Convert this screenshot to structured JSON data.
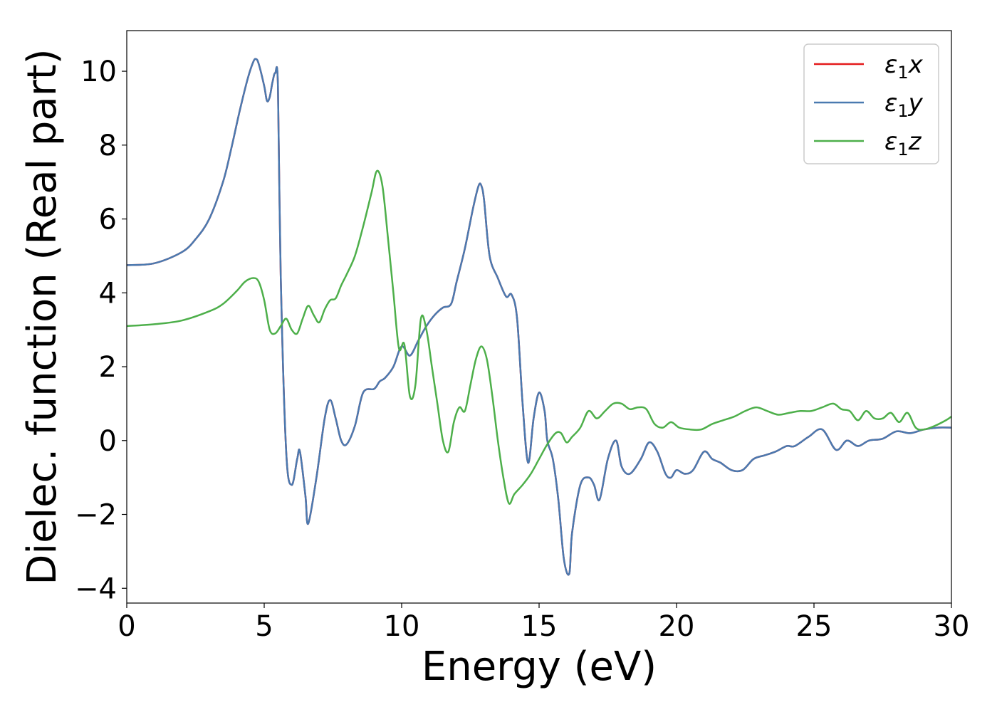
{
  "chart_data": {
    "type": "line",
    "xlabel": "Energy (eV)",
    "ylabel": "Dielec. function (Real part)",
    "xlim": [
      0,
      30
    ],
    "ylim": [
      -4.4,
      11.1
    ],
    "xticks": [
      0,
      5,
      10,
      15,
      20,
      25,
      30
    ],
    "yticks": [
      -4,
      -2,
      0,
      2,
      4,
      6,
      8,
      10
    ],
    "grid": false,
    "legend_position": "top-right",
    "series": [
      {
        "name": "ε1x",
        "color": "#e41a1c",
        "x": [
          0,
          1,
          2,
          2.5,
          3,
          3.5,
          3.8,
          4.1,
          4.4,
          4.6,
          4.7,
          4.8,
          5.0,
          5.1,
          5.2,
          5.3,
          5.4,
          5.5,
          5.6,
          5.8,
          6.0,
          6.2,
          6.3,
          6.5,
          6.6,
          6.9,
          7.2,
          7.4,
          7.6,
          7.8,
          8.0,
          8.3,
          8.6,
          9.0,
          9.2,
          9.4,
          9.7,
          10.0,
          10.3,
          10.6,
          10.9,
          11.2,
          11.5,
          11.8,
          12.0,
          12.3,
          12.6,
          12.8,
          12.9,
          13.0,
          13.2,
          13.5,
          13.8,
          14.0,
          14.2,
          14.4,
          14.6,
          14.8,
          15.0,
          15.2,
          15.3,
          15.5,
          15.7,
          15.9,
          16.1,
          16.2,
          16.5,
          16.8,
          17.0,
          17.2,
          17.5,
          17.8,
          18.0,
          18.3,
          18.7,
          19.0,
          19.3,
          19.6,
          19.8,
          20.0,
          20.3,
          20.6,
          21.0,
          21.3,
          21.6,
          22.0,
          22.4,
          22.8,
          23.2,
          23.6,
          24.0,
          24.3,
          24.8,
          25.3,
          25.8,
          26.2,
          26.6,
          27.0,
          27.5,
          28.0,
          28.5,
          29.0,
          29.5,
          30
        ],
        "y": [
          4.75,
          4.8,
          5.1,
          5.45,
          6.0,
          7.0,
          7.9,
          8.9,
          9.8,
          10.25,
          10.33,
          10.2,
          9.6,
          9.2,
          9.3,
          9.7,
          9.95,
          9.6,
          4.5,
          -0.3,
          -1.2,
          -0.5,
          -0.3,
          -1.5,
          -2.25,
          -1.0,
          0.6,
          1.1,
          0.6,
          0.0,
          -0.1,
          0.4,
          1.3,
          1.4,
          1.6,
          1.7,
          2.0,
          2.55,
          2.3,
          2.7,
          3.1,
          3.4,
          3.6,
          3.7,
          4.3,
          5.2,
          6.3,
          6.9,
          6.9,
          6.5,
          5.0,
          4.4,
          3.9,
          3.95,
          3.3,
          1.0,
          -0.6,
          0.6,
          1.3,
          0.8,
          0.0,
          -0.5,
          -1.6,
          -3.2,
          -3.6,
          -2.5,
          -1.2,
          -1.0,
          -1.2,
          -1.6,
          -0.5,
          0.0,
          -0.7,
          -0.9,
          -0.5,
          -0.05,
          -0.3,
          -0.9,
          -1.0,
          -0.8,
          -0.9,
          -0.8,
          -0.3,
          -0.5,
          -0.6,
          -0.8,
          -0.8,
          -0.5,
          -0.4,
          -0.3,
          -0.15,
          -0.15,
          0.1,
          0.3,
          -0.25,
          0.0,
          -0.15,
          0.0,
          0.05,
          0.25,
          0.2,
          0.3,
          0.35,
          0.35
        ]
      },
      {
        "name": "ε1y",
        "color": "#4a7ab0",
        "x": [
          0,
          1,
          2,
          2.5,
          3,
          3.5,
          3.8,
          4.1,
          4.4,
          4.6,
          4.7,
          4.8,
          5.0,
          5.1,
          5.2,
          5.3,
          5.4,
          5.5,
          5.6,
          5.8,
          6.0,
          6.2,
          6.3,
          6.5,
          6.6,
          6.9,
          7.2,
          7.4,
          7.6,
          7.8,
          8.0,
          8.3,
          8.6,
          9.0,
          9.2,
          9.4,
          9.7,
          10.0,
          10.3,
          10.6,
          10.9,
          11.2,
          11.5,
          11.8,
          12.0,
          12.3,
          12.6,
          12.8,
          12.9,
          13.0,
          13.2,
          13.5,
          13.8,
          14.0,
          14.2,
          14.4,
          14.6,
          14.8,
          15.0,
          15.2,
          15.3,
          15.5,
          15.7,
          15.9,
          16.1,
          16.2,
          16.5,
          16.8,
          17.0,
          17.2,
          17.5,
          17.8,
          18.0,
          18.3,
          18.7,
          19.0,
          19.3,
          19.6,
          19.8,
          20.0,
          20.3,
          20.6,
          21.0,
          21.3,
          21.6,
          22.0,
          22.4,
          22.8,
          23.2,
          23.6,
          24.0,
          24.3,
          24.8,
          25.3,
          25.8,
          26.2,
          26.6,
          27.0,
          27.5,
          28.0,
          28.5,
          29.0,
          29.5,
          30
        ],
        "y": [
          4.75,
          4.8,
          5.1,
          5.45,
          6.0,
          7.0,
          7.9,
          8.9,
          9.8,
          10.25,
          10.33,
          10.2,
          9.6,
          9.2,
          9.3,
          9.7,
          9.95,
          9.6,
          4.5,
          -0.3,
          -1.2,
          -0.5,
          -0.3,
          -1.5,
          -2.25,
          -1.0,
          0.6,
          1.1,
          0.6,
          0.0,
          -0.1,
          0.4,
          1.3,
          1.4,
          1.6,
          1.7,
          2.0,
          2.55,
          2.3,
          2.7,
          3.1,
          3.4,
          3.6,
          3.7,
          4.3,
          5.2,
          6.3,
          6.9,
          6.9,
          6.5,
          5.0,
          4.4,
          3.9,
          3.95,
          3.3,
          1.0,
          -0.6,
          0.6,
          1.3,
          0.8,
          0.0,
          -0.5,
          -1.6,
          -3.2,
          -3.6,
          -2.5,
          -1.2,
          -1.0,
          -1.2,
          -1.6,
          -0.5,
          0.0,
          -0.7,
          -0.9,
          -0.5,
          -0.05,
          -0.3,
          -0.9,
          -1.0,
          -0.8,
          -0.9,
          -0.8,
          -0.3,
          -0.5,
          -0.6,
          -0.8,
          -0.8,
          -0.5,
          -0.4,
          -0.3,
          -0.15,
          -0.15,
          0.1,
          0.3,
          -0.25,
          0.0,
          -0.15,
          0.0,
          0.05,
          0.25,
          0.2,
          0.3,
          0.35,
          0.35
        ]
      },
      {
        "name": "ε1z",
        "color": "#4daf4a",
        "x": [
          0,
          1,
          2,
          3,
          3.5,
          4.0,
          4.3,
          4.6,
          4.8,
          5.0,
          5.2,
          5.4,
          5.6,
          5.8,
          6.0,
          6.2,
          6.4,
          6.6,
          6.8,
          7.0,
          7.2,
          7.4,
          7.6,
          7.8,
          8.0,
          8.3,
          8.6,
          8.9,
          9.1,
          9.3,
          9.5,
          9.7,
          9.9,
          10.1,
          10.3,
          10.5,
          10.7,
          10.9,
          11.1,
          11.3,
          11.5,
          11.7,
          11.9,
          12.1,
          12.3,
          12.5,
          12.7,
          12.9,
          13.1,
          13.3,
          13.5,
          13.7,
          13.9,
          14.1,
          14.4,
          14.7,
          15.0,
          15.3,
          15.6,
          15.8,
          16.0,
          16.2,
          16.5,
          16.8,
          17.1,
          17.4,
          17.7,
          18.0,
          18.3,
          18.6,
          18.9,
          19.2,
          19.5,
          19.8,
          20.1,
          20.5,
          20.9,
          21.3,
          21.7,
          22.1,
          22.5,
          22.9,
          23.3,
          23.7,
          24.1,
          24.5,
          24.9,
          25.3,
          25.7,
          26.0,
          26.3,
          26.6,
          26.9,
          27.2,
          27.5,
          27.8,
          28.1,
          28.4,
          28.7,
          29.0,
          29.4,
          29.8,
          30
        ],
        "y": [
          3.1,
          3.15,
          3.25,
          3.5,
          3.7,
          4.05,
          4.3,
          4.4,
          4.3,
          3.8,
          3.0,
          2.9,
          3.1,
          3.3,
          3.0,
          2.9,
          3.3,
          3.65,
          3.4,
          3.2,
          3.55,
          3.8,
          3.85,
          4.2,
          4.5,
          5.0,
          5.8,
          6.7,
          7.3,
          6.9,
          5.5,
          4.0,
          2.5,
          2.6,
          1.2,
          1.5,
          3.3,
          3.0,
          2.0,
          1.0,
          0.0,
          -0.3,
          0.5,
          0.9,
          0.8,
          1.5,
          2.2,
          2.55,
          2.2,
          1.2,
          0.0,
          -1.0,
          -1.7,
          -1.45,
          -1.2,
          -0.9,
          -0.5,
          -0.1,
          0.2,
          0.2,
          -0.05,
          0.1,
          0.35,
          0.8,
          0.6,
          0.8,
          1.0,
          1.0,
          0.85,
          0.9,
          0.85,
          0.45,
          0.35,
          0.5,
          0.35,
          0.3,
          0.3,
          0.45,
          0.55,
          0.65,
          0.8,
          0.9,
          0.8,
          0.7,
          0.75,
          0.8,
          0.8,
          0.9,
          1.0,
          0.85,
          0.8,
          0.55,
          0.8,
          0.6,
          0.6,
          0.75,
          0.5,
          0.75,
          0.35,
          0.3,
          0.4,
          0.55,
          0.65
        ]
      }
    ]
  }
}
